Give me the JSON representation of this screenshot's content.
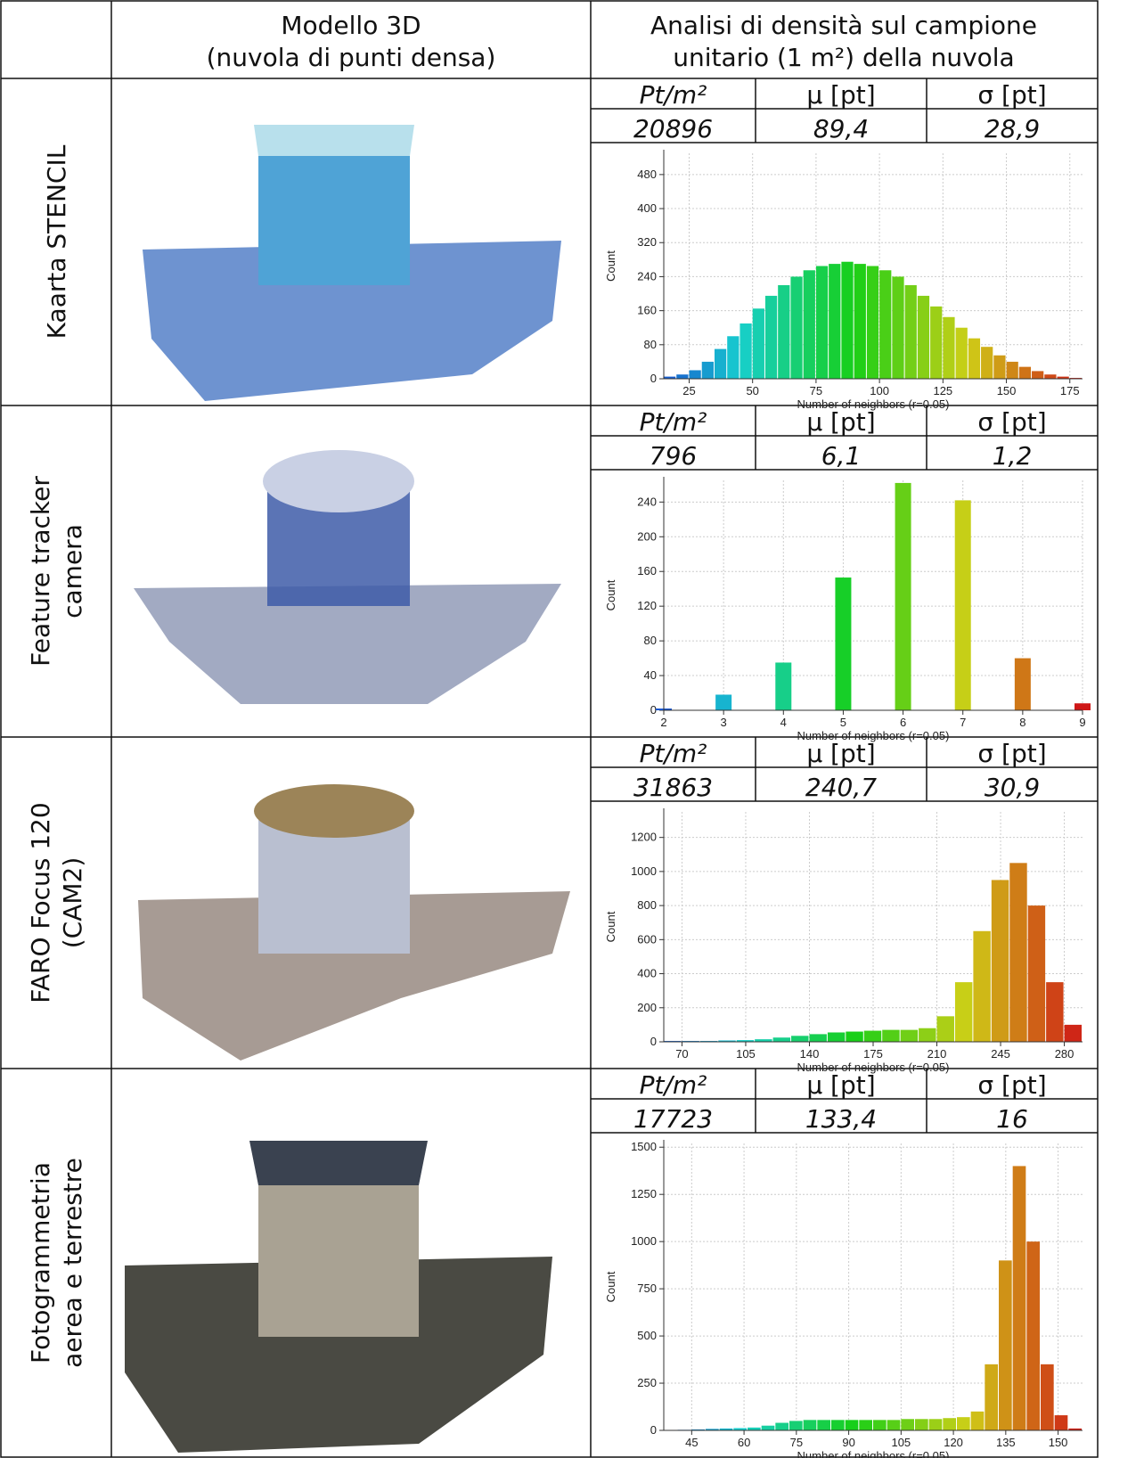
{
  "header": {
    "model": [
      "Modello 3D",
      "(nuvola di punti densa)"
    ],
    "analysis": [
      "Analisi di densità sul campione",
      "unitario (1 m²) della nuvola"
    ]
  },
  "rows": [
    {
      "label": [
        "Kaarta STENCIL"
      ],
      "stats_headers": [
        "Pt/m²",
        "μ  [pt]",
        "σ  [pt]"
      ],
      "stats": [
        "20896",
        "89,4",
        "28,9"
      ]
    },
    {
      "label": [
        "Feature tracker",
        "camera"
      ],
      "stats_headers": [
        "Pt/m²",
        "μ  [pt]",
        "σ  [pt]"
      ],
      "stats": [
        "796",
        "6,1",
        "1,2"
      ]
    },
    {
      "label": [
        "FARO Focus 120",
        "(CAM2)"
      ],
      "stats_headers": [
        "Pt/m²",
        "μ  [pt]",
        "σ  [pt]"
      ],
      "stats": [
        "31863",
        "240,7",
        "30,9"
      ]
    },
    {
      "label": [
        "Fotogrammetria",
        "aerea e terrestre"
      ],
      "stats_headers": [
        "Pt/m²",
        "μ  [pt]",
        "σ  [pt]"
      ],
      "stats": [
        "17723",
        "133,4",
        "16"
      ]
    }
  ],
  "chart_data": [
    {
      "type": "histogram",
      "xlabel": "Number of neighbors (r=0.05)",
      "ylabel": "Count",
      "bins": [
        15,
        20,
        25,
        30,
        35,
        40,
        45,
        50,
        55,
        60,
        65,
        70,
        75,
        80,
        85,
        90,
        95,
        100,
        105,
        110,
        115,
        120,
        125,
        130,
        135,
        140,
        145,
        150,
        155,
        160,
        165,
        170,
        175,
        180
      ],
      "values": [
        5,
        10,
        20,
        40,
        70,
        100,
        130,
        165,
        195,
        220,
        240,
        255,
        265,
        270,
        275,
        270,
        265,
        255,
        240,
        220,
        195,
        170,
        145,
        120,
        95,
        75,
        55,
        40,
        28,
        18,
        10,
        5,
        2
      ],
      "xlim": [
        15,
        180
      ],
      "xticks": [
        25,
        50,
        75,
        100,
        125,
        150,
        175
      ],
      "ylim": [
        0,
        530
      ],
      "yticks": [
        0,
        80,
        160,
        240,
        320,
        400,
        480
      ],
      "grid": true
    },
    {
      "type": "bar",
      "xlabel": "Number of neighbors (r=0.05)",
      "ylabel": "Count",
      "x": [
        2,
        3,
        4,
        5,
        6,
        7,
        8,
        9
      ],
      "values": [
        2,
        18,
        55,
        153,
        262,
        242,
        60,
        8
      ],
      "xlim": [
        2,
        9
      ],
      "xticks": [
        2,
        3,
        4,
        5,
        6,
        7,
        8,
        9
      ],
      "ylim": [
        0,
        265
      ],
      "yticks": [
        0,
        40,
        80,
        120,
        160,
        200,
        240
      ],
      "grid": true
    },
    {
      "type": "histogram",
      "xlabel": "Number of neighbors (r=0.05)",
      "ylabel": "Count",
      "bins": [
        60,
        70,
        80,
        90,
        100,
        110,
        120,
        130,
        140,
        150,
        160,
        170,
        180,
        190,
        200,
        210,
        220,
        230,
        240,
        250,
        260,
        270,
        280,
        290
      ],
      "values": [
        5,
        5,
        5,
        8,
        10,
        15,
        25,
        35,
        45,
        55,
        60,
        65,
        70,
        70,
        80,
        150,
        350,
        650,
        950,
        1050,
        800,
        350,
        100
      ],
      "xlim": [
        60,
        290
      ],
      "xticks": [
        70,
        105,
        140,
        175,
        210,
        245,
        280
      ],
      "ylim": [
        0,
        1350
      ],
      "yticks": [
        0,
        200,
        400,
        600,
        800,
        1000,
        1200
      ],
      "grid": true
    },
    {
      "type": "histogram",
      "xlabel": "Number of neighbors (r=0.05)",
      "ylabel": "Count",
      "bins": [
        37,
        41,
        45,
        49,
        53,
        57,
        61,
        65,
        69,
        73,
        77,
        81,
        85,
        89,
        93,
        97,
        101,
        105,
        109,
        113,
        117,
        121,
        125,
        129,
        133,
        137,
        141,
        145,
        149,
        153,
        157
      ],
      "values": [
        2,
        3,
        5,
        8,
        10,
        12,
        15,
        25,
        40,
        50,
        55,
        55,
        55,
        55,
        55,
        55,
        55,
        60,
        60,
        60,
        65,
        70,
        100,
        350,
        900,
        1400,
        1000,
        350,
        80,
        10
      ],
      "xlim": [
        37,
        157
      ],
      "xticks": [
        45,
        60,
        75,
        90,
        105,
        120,
        135,
        150
      ],
      "ylim": [
        0,
        1520
      ],
      "yticks": [
        0,
        250,
        500,
        750,
        1000,
        1250,
        1500
      ],
      "grid": true
    }
  ]
}
